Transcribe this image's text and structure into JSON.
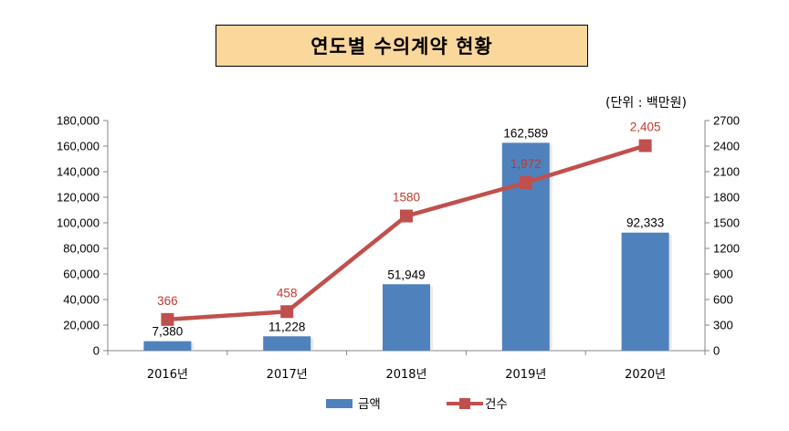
{
  "title": "연도별 수의계약 현황",
  "unit_label": "(단위 : 백만원)",
  "colors": {
    "bar": "#4f81bd",
    "line": "#c0504d",
    "title_bg": "#fad79b"
  },
  "chart_data": {
    "type": "bar",
    "title": "연도별 수의계약 현황",
    "categories": [
      "2016년",
      "2017년",
      "2018년",
      "2019년",
      "2020년"
    ],
    "series": [
      {
        "name": "금액",
        "type": "bar",
        "axis": "left",
        "values": [
          7380,
          11228,
          51949,
          162589,
          92333
        ],
        "labels": [
          "7,380",
          "11,228",
          "51,949",
          "162,589",
          "92,333"
        ]
      },
      {
        "name": "건수",
        "type": "line",
        "axis": "right",
        "values": [
          366,
          458,
          1580,
          1972,
          2405
        ],
        "labels": [
          "366",
          "458",
          "1580",
          "1,972",
          "2,405"
        ]
      }
    ],
    "y_left": {
      "range": [
        0,
        180000
      ],
      "ticks": [
        "0",
        "20,000",
        "40,000",
        "60,000",
        "80,000",
        "100,000",
        "120,000",
        "140,000",
        "160,000",
        "180,000"
      ]
    },
    "y_right": {
      "range": [
        0,
        2700
      ],
      "ticks": [
        "0",
        "300",
        "600",
        "900",
        "1200",
        "1500",
        "1800",
        "2100",
        "2400",
        "2700"
      ]
    },
    "grid": false,
    "legend_position": "bottom"
  }
}
